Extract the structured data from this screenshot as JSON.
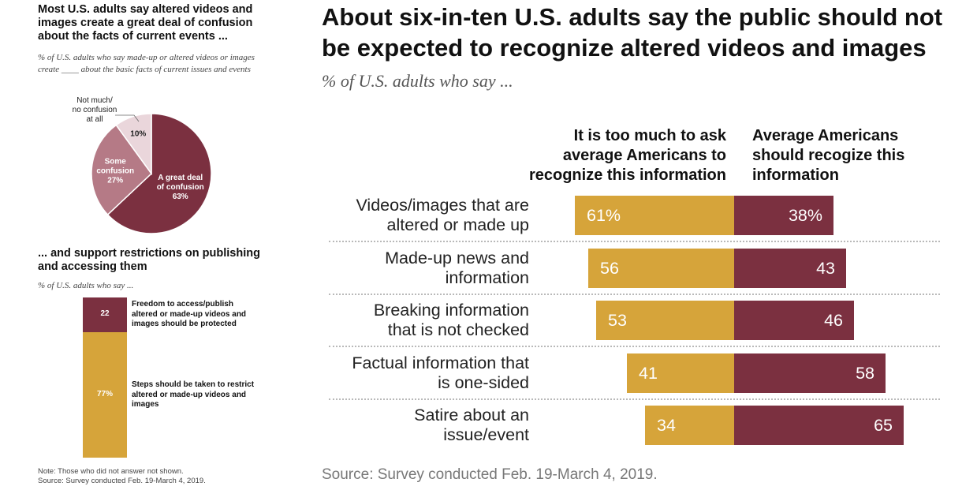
{
  "left_panel": {
    "title": "Most U.S. adults say altered videos and images create a great deal of confusion about the facts of current events ...",
    "subtitle": "% of U.S. adults who say made-up or altered videos or images create ____ about the basic facts of current issues and events",
    "bottom_title": "... and support restrictions on publishing and accessing them",
    "bottom_subtitle": "% of U.S. adults who say ...",
    "note_line1": "Note: Those who did not answer not shown.",
    "note_line2": "Source: Survey conducted Feb. 19-March 4, 2019."
  },
  "main": {
    "title": "About six-in-ten U.S. adults say the public should not be expected to recognize altered videos and images",
    "subtitle": "% of U.S. adults who say ...",
    "source": "Source: Survey conducted Feb. 19-March 4, 2019."
  },
  "colors": {
    "gold": "#d6a43a",
    "maroon": "#7b3040",
    "light_maroon": "#b57a86",
    "pale": "#ead6db"
  },
  "chart_data": [
    {
      "type": "pie",
      "slices": [
        {
          "label_lines": [
            "A great deal",
            "of confusion"
          ],
          "value": 63,
          "value_label": "63%",
          "color": "#7b3040"
        },
        {
          "label_lines": [
            "Some",
            "confusion"
          ],
          "value": 27,
          "value_label": "27%",
          "color": "#b57a86"
        },
        {
          "label_lines": [
            "Not much/",
            "no confusion",
            "at all"
          ],
          "value": 10,
          "value_label": "10%",
          "color": "#ead6db"
        }
      ]
    },
    {
      "type": "bar",
      "stacked": true,
      "series": [
        {
          "name": "Freedom to access/publish altered or made-up videos and images should be protected",
          "value": 22,
          "value_label": "22",
          "color": "#7b3040"
        },
        {
          "name": "Steps should be taken to restrict altered or made-up videos and images",
          "value": 77,
          "value_label": "77%",
          "color": "#d6a43a"
        }
      ]
    },
    {
      "type": "bar",
      "orientation": "horizontal",
      "diverging": true,
      "categories": [
        "Videos/images that are altered or made up",
        "Made-up news and information",
        "Breaking information that is not checked",
        "Factual information that is one-sided",
        "Satire about an issue/event"
      ],
      "category_lines": [
        [
          "Videos/images that are",
          "altered or made up"
        ],
        [
          "Made-up news and",
          "information"
        ],
        [
          "Breaking information",
          "that is not checked"
        ],
        [
          "Factual information that",
          "is one-sided"
        ],
        [
          "Satire about an",
          "issue/event"
        ]
      ],
      "series": [
        {
          "name": "It is too much to ask average Americans to recognize this information",
          "values": [
            61,
            56,
            53,
            41,
            34
          ],
          "value_labels": [
            "61%",
            "56",
            "53",
            "41",
            "34"
          ],
          "color": "#d6a43a"
        },
        {
          "name": "Average Americans should recogize this information",
          "values": [
            38,
            43,
            46,
            58,
            65
          ],
          "value_labels": [
            "38%",
            "43",
            "46",
            "58",
            "65"
          ],
          "color": "#7b3040"
        }
      ],
      "column_headers": [
        [
          "It is too much to ask",
          "average Americans to",
          "recognize this information"
        ],
        [
          "Average Americans",
          "should recogize this",
          "information"
        ]
      ]
    }
  ]
}
